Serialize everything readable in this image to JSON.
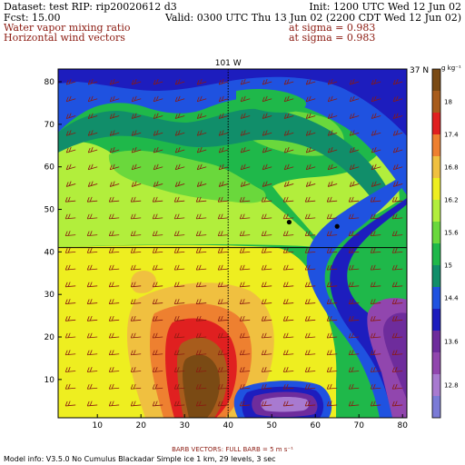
{
  "header": {
    "dataset_line": "Dataset: test  RIP: rip20020612 d3",
    "init_line": "Init: 1200 UTC Wed 12 Jun 02",
    "fcst_line": "Fcst:    15.00",
    "valid_line": "Valid: 0300 UTC Thu 13 Jun 02 (2200 CDT Wed 12 Jun 02)",
    "field1_name": "Water vapor mixing ratio",
    "field1_level": "at sigma = 0.983",
    "field2_name": "Horizontal wind vectors",
    "field2_level": "at sigma = 0.983"
  },
  "footer": {
    "barb_info": "BARB VECTORS:  FULL BARB = 5 m s⁻¹",
    "model_info": "Model info: V3.5.0 No Cumulus Blackadar  Simple ice    1 km,  29 levels,     3 sec"
  },
  "colors": {
    "scale": [
      "#7b7bd6",
      "#a87ad0",
      "#9146ae",
      "#6e2c9c",
      "#1d1dbe",
      "#1f52e0",
      "#118e6a",
      "#1fb84a",
      "#6ad83c",
      "#b2ee3c",
      "#eeee20",
      "#f0c040",
      "#ee8030",
      "#e02020",
      "#a85c1c",
      "#7a4a14"
    ]
  },
  "chart_data": {
    "type": "heatmap",
    "title": "",
    "x_ticks": [
      10,
      20,
      30,
      40,
      50,
      60,
      70,
      80
    ],
    "y_ticks": [
      10,
      20,
      30,
      40,
      50,
      60,
      70,
      80
    ],
    "xlim": [
      1,
      81
    ],
    "ylim": [
      1,
      83
    ],
    "cross_section_labels": {
      "top": "101 W",
      "right": "37 N"
    },
    "crosshair": {
      "x": 40,
      "y": 41
    },
    "markers": [
      {
        "x": 54,
        "y": 47
      },
      {
        "x": 65,
        "y": 46
      }
    ],
    "colorbar": {
      "units": "g kg⁻¹",
      "tick_labels": [
        "12.8",
        "13.6",
        "14.4",
        "15",
        "15.6",
        "16.2",
        "16.8",
        "17.4",
        "18"
      ],
      "tick_values": [
        12.8,
        13.6,
        14.4,
        15.0,
        15.6,
        16.2,
        16.8,
        17.4,
        18.0
      ],
      "range": [
        12.2,
        18.6
      ]
    },
    "barbs_grid": {
      "x_start": 5,
      "x_step": 5,
      "y_start": 4,
      "y_step": 4
    }
  }
}
